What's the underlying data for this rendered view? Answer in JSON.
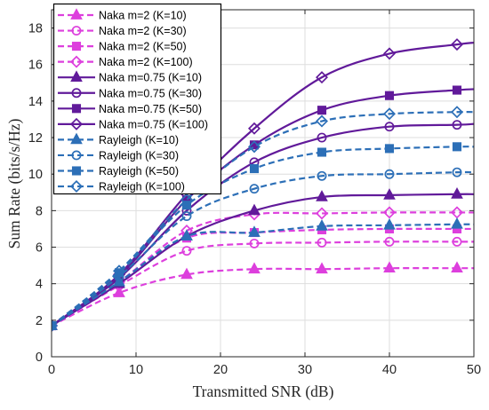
{
  "chart_data": {
    "type": "line",
    "xlabel": "Transmitted SNR (dB)",
    "ylabel": "Sum Rate (bits/s/Hz)",
    "xlim": [
      0,
      50
    ],
    "ylim": [
      0,
      19
    ],
    "xticks": [
      0,
      10,
      20,
      30,
      40,
      50
    ],
    "yticks": [
      0,
      2,
      4,
      6,
      8,
      10,
      12,
      14,
      16,
      18
    ],
    "grid": true,
    "legend_position": "top-left",
    "x": [
      0,
      8,
      16,
      24,
      32,
      40,
      48,
      50
    ],
    "marker_x": [
      0,
      8,
      16,
      24,
      32,
      40,
      48
    ],
    "series": [
      {
        "name": "Naka m=2 (K=10)",
        "color": "#DD3FDD",
        "line": "dashed",
        "marker": "triangle",
        "marker_filled": true,
        "values": [
          1.7,
          3.5,
          4.5,
          4.8,
          4.8,
          4.85,
          4.85,
          4.85
        ]
      },
      {
        "name": "Naka m=2 (K=30)",
        "color": "#DD3FDD",
        "line": "dashed",
        "marker": "circle",
        "marker_filled": false,
        "values": [
          1.7,
          3.9,
          5.8,
          6.2,
          6.25,
          6.3,
          6.3,
          6.3
        ]
      },
      {
        "name": "Naka m=2 (K=50)",
        "color": "#DD3FDD",
        "line": "dashed",
        "marker": "square",
        "marker_filled": true,
        "values": [
          1.7,
          4.0,
          6.5,
          6.8,
          6.95,
          7.0,
          7.0,
          7.0
        ]
      },
      {
        "name": "Naka m=2 (K=100)",
        "color": "#DD3FDD",
        "line": "dashed",
        "marker": "diamond",
        "marker_filled": false,
        "values": [
          1.7,
          4.1,
          6.9,
          7.8,
          7.85,
          7.9,
          7.9,
          7.9
        ]
      },
      {
        "name": "Naka m=0.75 (K=10)",
        "color": "#611A9A",
        "line": "solid",
        "marker": "triangle",
        "marker_filled": true,
        "values": [
          1.7,
          4.0,
          6.6,
          8.0,
          8.75,
          8.85,
          8.9,
          8.9
        ]
      },
      {
        "name": "Naka m=0.75 (K=30)",
        "color": "#611A9A",
        "line": "solid",
        "marker": "circle",
        "marker_filled": false,
        "values": [
          1.7,
          4.3,
          8.0,
          10.65,
          12.0,
          12.6,
          12.7,
          12.75
        ]
      },
      {
        "name": "Naka m=0.75 (K=50)",
        "color": "#611A9A",
        "line": "solid",
        "marker": "square",
        "marker_filled": true,
        "values": [
          1.7,
          4.4,
          8.6,
          11.6,
          13.5,
          14.3,
          14.6,
          14.65
        ]
      },
      {
        "name": "Naka m=0.75 (K=100)",
        "color": "#611A9A",
        "line": "solid",
        "marker": "diamond",
        "marker_filled": false,
        "values": [
          1.7,
          4.5,
          8.9,
          12.5,
          15.3,
          16.6,
          17.1,
          17.2
        ]
      },
      {
        "name": "Rayleigh (K=10)",
        "color": "#2C6FB7",
        "line": "dashed",
        "marker": "triangle",
        "marker_filled": true,
        "values": [
          1.7,
          4.1,
          6.6,
          6.8,
          7.15,
          7.2,
          7.25,
          7.25
        ]
      },
      {
        "name": "Rayleigh (K=30)",
        "color": "#2C6FB7",
        "line": "dashed",
        "marker": "circle",
        "marker_filled": false,
        "values": [
          1.7,
          4.4,
          7.7,
          9.2,
          9.9,
          10.0,
          10.1,
          10.1
        ]
      },
      {
        "name": "Rayleigh (K=50)",
        "color": "#2C6FB7",
        "line": "dashed",
        "marker": "square",
        "marker_filled": true,
        "values": [
          1.7,
          4.6,
          8.3,
          10.3,
          11.2,
          11.4,
          11.5,
          11.5
        ]
      },
      {
        "name": "Rayleigh (K=100)",
        "color": "#2C6FB7",
        "line": "dashed",
        "marker": "diamond",
        "marker_filled": false,
        "values": [
          1.7,
          4.7,
          8.6,
          11.5,
          12.9,
          13.3,
          13.4,
          13.4
        ]
      }
    ]
  }
}
